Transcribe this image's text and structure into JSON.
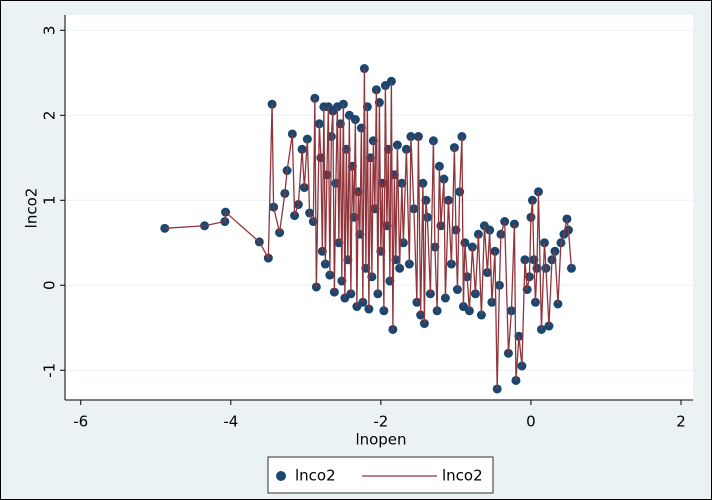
{
  "chart_data": {
    "type": "scatter",
    "x_label": "lnopen",
    "y_label": "lnco2",
    "xlim": [
      -6.21,
      2.16
    ],
    "ylim": [
      -1.35,
      3.18
    ],
    "xticks": [
      -6,
      -4,
      -2,
      0,
      2
    ],
    "yticks": [
      -1,
      0,
      1,
      2,
      3
    ],
    "grid": true,
    "legend": "bottom",
    "x": [
      -4.88,
      -4.35,
      -4.08,
      -4.07,
      -3.62,
      -3.5,
      -3.45,
      -3.43,
      -3.35,
      -3.28,
      -3.25,
      -3.18,
      -3.15,
      -3.1,
      -3.05,
      -3.02,
      -2.98,
      -2.95,
      -2.9,
      -2.88,
      -2.86,
      -2.82,
      -2.8,
      -2.78,
      -2.76,
      -2.74,
      -2.72,
      -2.7,
      -2.68,
      -2.66,
      -2.64,
      -2.62,
      -2.6,
      -2.58,
      -2.56,
      -2.54,
      -2.52,
      -2.5,
      -2.48,
      -2.46,
      -2.44,
      -2.42,
      -2.4,
      -2.38,
      -2.36,
      -2.34,
      -2.32,
      -2.3,
      -2.28,
      -2.26,
      -2.24,
      -2.22,
      -2.2,
      -2.18,
      -2.16,
      -2.14,
      -2.12,
      -2.1,
      -2.08,
      -2.06,
      -2.04,
      -2.02,
      -2.0,
      -1.98,
      -1.96,
      -1.94,
      -1.92,
      -1.9,
      -1.88,
      -1.86,
      -1.84,
      -1.82,
      -1.8,
      -1.78,
      -1.75,
      -1.72,
      -1.7,
      -1.66,
      -1.62,
      -1.6,
      -1.56,
      -1.52,
      -1.5,
      -1.47,
      -1.44,
      -1.42,
      -1.4,
      -1.38,
      -1.34,
      -1.3,
      -1.28,
      -1.25,
      -1.22,
      -1.2,
      -1.16,
      -1.14,
      -1.1,
      -1.06,
      -1.02,
      -1.0,
      -0.98,
      -0.95,
      -0.92,
      -0.9,
      -0.88,
      -0.85,
      -0.82,
      -0.78,
      -0.74,
      -0.7,
      -0.66,
      -0.62,
      -0.58,
      -0.55,
      -0.52,
      -0.48,
      -0.45,
      -0.42,
      -0.4,
      -0.35,
      -0.3,
      -0.26,
      -0.22,
      -0.2,
      -0.16,
      -0.12,
      -0.08,
      -0.05,
      -0.02,
      0.0,
      0.02,
      0.04,
      0.06,
      0.08,
      0.1,
      0.14,
      0.18,
      0.2,
      0.24,
      0.28,
      0.32,
      0.36,
      0.4,
      0.44,
      0.48,
      0.5,
      0.54
    ],
    "series": [
      {
        "name": "lnco2",
        "type": "scatter",
        "color": "#1a476f",
        "values": [
          0.67,
          0.7,
          0.75,
          0.86,
          0.51,
          0.32,
          2.13,
          0.92,
          0.62,
          1.08,
          1.35,
          1.78,
          0.82,
          0.95,
          1.6,
          1.15,
          1.72,
          0.85,
          0.75,
          2.2,
          -0.02,
          1.9,
          1.5,
          0.4,
          2.1,
          0.25,
          1.3,
          2.1,
          0.12,
          1.75,
          2.05,
          -0.08,
          1.2,
          2.1,
          0.5,
          1.9,
          0.05,
          2.13,
          -0.15,
          1.6,
          0.3,
          2.0,
          -0.1,
          1.4,
          0.8,
          1.95,
          -0.25,
          1.1,
          0.6,
          1.85,
          -0.2,
          2.55,
          0.2,
          2.1,
          -0.28,
          1.5,
          0.1,
          1.7,
          0.9,
          2.3,
          -0.1,
          2.15,
          0.4,
          1.2,
          -0.3,
          2.35,
          0.7,
          1.6,
          0.05,
          2.4,
          -0.52,
          1.3,
          0.3,
          1.65,
          0.2,
          1.2,
          0.5,
          1.6,
          0.25,
          1.75,
          0.9,
          -0.2,
          1.75,
          -0.35,
          1.2,
          -0.45,
          1.0,
          0.8,
          -0.1,
          1.7,
          0.45,
          -0.3,
          1.4,
          0.7,
          1.25,
          -0.15,
          1.0,
          0.25,
          1.62,
          0.65,
          -0.05,
          1.1,
          1.75,
          -0.25,
          0.5,
          0.1,
          -0.3,
          0.45,
          -0.1,
          0.6,
          -0.35,
          0.7,
          0.15,
          0.65,
          -0.2,
          0.4,
          -1.22,
          0.0,
          0.6,
          0.75,
          -0.8,
          -0.3,
          0.72,
          -1.12,
          -0.6,
          -0.95,
          0.3,
          -0.05,
          0.1,
          0.8,
          1.0,
          0.3,
          -0.2,
          0.2,
          1.1,
          -0.52,
          0.5,
          0.2,
          -0.48,
          0.3,
          0.4,
          -0.22,
          0.5,
          0.6,
          0.78,
          0.65,
          0.2
        ]
      },
      {
        "name": "lnco2",
        "type": "line",
        "color": "#90353b",
        "values": [
          0.67,
          0.7,
          0.75,
          0.86,
          0.51,
          0.32,
          2.13,
          0.92,
          0.62,
          1.08,
          1.35,
          1.78,
          0.82,
          0.95,
          1.6,
          1.15,
          1.72,
          0.85,
          0.75,
          2.2,
          -0.02,
          1.9,
          1.5,
          0.4,
          2.1,
          0.25,
          1.3,
          2.1,
          0.12,
          1.75,
          2.05,
          -0.08,
          1.2,
          2.1,
          0.5,
          1.9,
          0.05,
          2.13,
          -0.15,
          1.6,
          0.3,
          2.0,
          -0.1,
          1.4,
          0.8,
          1.95,
          -0.25,
          1.1,
          0.6,
          1.85,
          -0.2,
          2.55,
          0.2,
          2.1,
          -0.28,
          1.5,
          0.1,
          1.7,
          0.9,
          2.3,
          -0.1,
          2.15,
          0.4,
          1.2,
          -0.3,
          2.35,
          0.7,
          1.6,
          0.05,
          2.4,
          -0.52,
          1.3,
          0.3,
          1.65,
          0.2,
          1.2,
          0.5,
          1.6,
          0.25,
          1.75,
          0.9,
          -0.2,
          1.75,
          -0.35,
          1.2,
          -0.45,
          1.0,
          0.8,
          -0.1,
          1.7,
          0.45,
          -0.3,
          1.4,
          0.7,
          1.25,
          -0.15,
          1.0,
          0.25,
          1.62,
          0.65,
          -0.05,
          1.1,
          1.75,
          -0.25,
          0.5,
          0.1,
          -0.3,
          0.45,
          -0.1,
          0.6,
          -0.35,
          0.7,
          0.15,
          0.65,
          -0.2,
          0.4,
          -1.22,
          0.0,
          0.6,
          0.75,
          -0.8,
          -0.3,
          0.72,
          -1.12,
          -0.6,
          -0.95,
          0.3,
          -0.05,
          0.1,
          0.8,
          1.0,
          0.3,
          -0.2,
          0.2,
          1.1,
          -0.52,
          0.5,
          0.2,
          -0.48,
          0.3,
          0.4,
          -0.22,
          0.5,
          0.6,
          0.78,
          0.65,
          0.2
        ]
      }
    ]
  }
}
